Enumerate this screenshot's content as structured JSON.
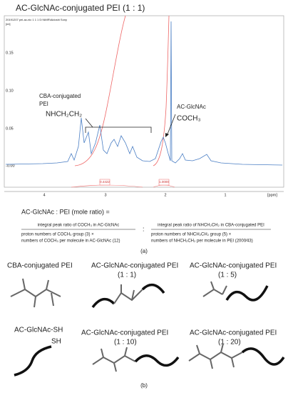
{
  "header": {
    "title": "AC-GlcNAc-conjugated PEI (1 : 1)"
  },
  "spectrum": {
    "corner_text": "20191207 pei-ac-nic 1 1 1 D:\\NMR\\Aidoshi Sony",
    "y_unit": "[ml]",
    "y_ticks": [
      "0.15",
      "0.10",
      "0.05",
      "-0.00"
    ],
    "x_ticks": [
      "4",
      "3",
      "2",
      "1"
    ],
    "x_unit": "[ppm]",
    "integrals": [
      "0.4422",
      "1.0000"
    ],
    "annotation_pei": [
      "CBA-conjugated",
      "PEI",
      "NHCH₂CH₂"
    ],
    "annotation_glcnac": [
      "AC-GlcNAc",
      "COCH₃"
    ]
  },
  "equation": {
    "lead": "AC-GlcNAc : PEI (mole ratio) =",
    "left_numerator": "integral peak ratio of COCH₃ in AC-GlcNAc",
    "left_denominator": [
      "proton numbers of COCH₃ group (3) ×",
      "numbers of COCH₃ per molecule in AC-GlcNAc (12)"
    ],
    "separator": ":",
    "right_numerator": "integral peak ratio of NHCH₂CH₂ in CBA-conjugated PEI",
    "right_denominator": [
      "proton numbers of NHCH₂CH₂ group (5) ×",
      "numbers of NHCH₂CH₂ per molecule in PEI (2000⁄43)"
    ]
  },
  "panel_a_label": "(a)",
  "structures": [
    {
      "name": "CBA-conjugated PEI"
    },
    {
      "name": "AC-GlcNAc-conjugated PEI",
      "ratio": "(1 : 1)"
    },
    {
      "name": "AC-GlcNAc-conjugated PEI",
      "ratio": "(1 : 5)"
    },
    {
      "name": "AC-GlcNAc-SH",
      "end": "SH"
    },
    {
      "name": "AC-GlcNAc-conjugated PEI",
      "ratio": "(1 : 10)"
    },
    {
      "name": "AC-GlcNAc-conjugated PEI",
      "ratio": "(1 : 20)"
    }
  ],
  "panel_b_label": "(b)"
}
